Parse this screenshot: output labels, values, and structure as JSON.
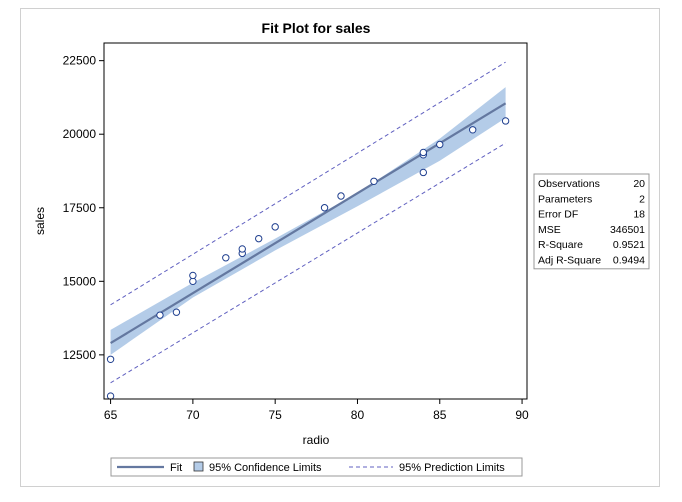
{
  "chart_data": {
    "type": "scatter",
    "title": "Fit Plot for sales",
    "xlabel": "radio",
    "ylabel": "sales",
    "xlim": [
      64.6,
      90.3
    ],
    "ylim": [
      11000,
      23100
    ],
    "xticks": [
      65,
      70,
      75,
      80,
      85,
      90
    ],
    "yticks": [
      12500,
      15000,
      17500,
      20000,
      22500
    ],
    "xtick_labels": [
      "65",
      "70",
      "75",
      "80",
      "85",
      "90"
    ],
    "ytick_labels": [
      "12500",
      "15000",
      "17500",
      "20000",
      "22500"
    ],
    "grid": false,
    "points": {
      "x": [
        65,
        65,
        68,
        69,
        70,
        70,
        72,
        73,
        73,
        74,
        75,
        78,
        79,
        81,
        84,
        84,
        84,
        85,
        87,
        89
      ],
      "y": [
        11100,
        12350,
        13850,
        13950,
        15000,
        15200,
        15800,
        15950,
        16100,
        16450,
        16850,
        17500,
        17900,
        18400,
        18700,
        19300,
        19380,
        19650,
        20150,
        20450
      ]
    },
    "fit_line": {
      "x": [
        65,
        89
      ],
      "y": [
        12900,
        21050
      ]
    },
    "confidence_band": {
      "x": [
        65,
        70,
        75,
        80,
        85,
        89
      ],
      "lower": [
        12500,
        14450,
        16050,
        17550,
        19100,
        20550
      ],
      "upper": [
        13350,
        14950,
        16450,
        18000,
        19850,
        21600
      ]
    },
    "prediction_limits": {
      "x": [
        65,
        89
      ],
      "lower": [
        11550,
        19700
      ],
      "upper": [
        14200,
        22450
      ]
    },
    "legend": {
      "placement": "bottom",
      "entries": [
        "Fit",
        "95% Confidence Limits",
        "95% Prediction Limits"
      ]
    },
    "stats_table": {
      "placement": "right",
      "rows": [
        {
          "label": "Observations",
          "value": "20"
        },
        {
          "label": "Parameters",
          "value": "2"
        },
        {
          "label": "Error DF",
          "value": "18"
        },
        {
          "label": "MSE",
          "value": "346501"
        },
        {
          "label": "R-Square",
          "value": "0.9521"
        },
        {
          "label": "Adj R-Square",
          "value": "0.9494"
        }
      ]
    },
    "colors": {
      "fit_line": "#6478a0",
      "confidence_band": "#b4cce8",
      "prediction_line": "#6060c0",
      "marker_stroke": "#1f3f8f"
    }
  }
}
